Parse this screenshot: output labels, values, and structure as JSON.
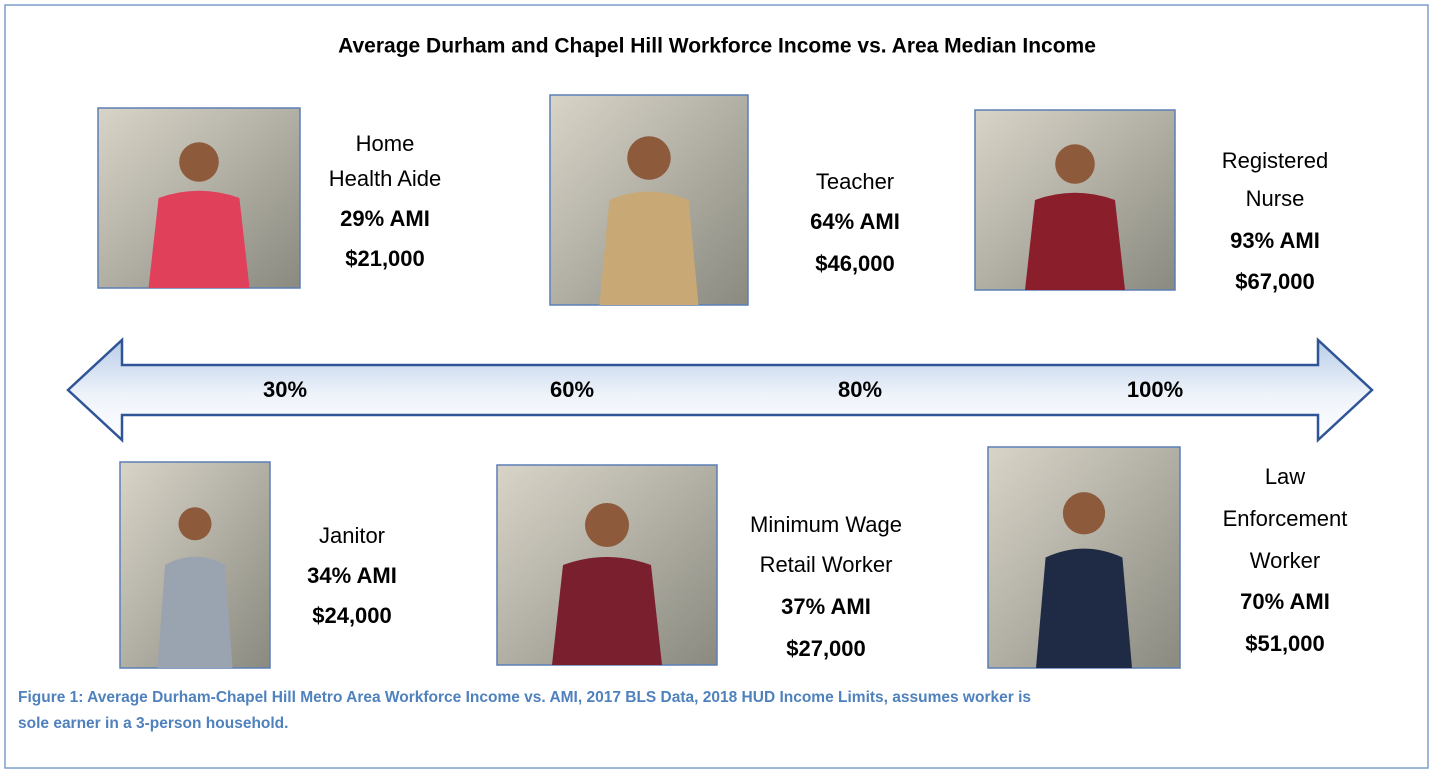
{
  "title": "Average Durham and Chapel Hill Workforce Income vs. Area Median Income",
  "workers": [
    {
      "name_lines": [
        "Home",
        "Health Aide"
      ],
      "ami": "29% AMI",
      "income": "$21,000"
    },
    {
      "name_lines": [
        "Teacher"
      ],
      "ami": "64% AMI",
      "income": "$46,000"
    },
    {
      "name_lines": [
        "Registered",
        "Nurse"
      ],
      "ami": "93% AMI",
      "income": "$67,000"
    },
    {
      "name_lines": [
        "Janitor"
      ],
      "ami": "34% AMI",
      "income": "$24,000"
    },
    {
      "name_lines": [
        "Minimum Wage",
        "Retail Worker"
      ],
      "ami": "37% AMI",
      "income": "$27,000"
    },
    {
      "name_lines": [
        "Law",
        "Enforcement",
        "Worker"
      ],
      "ami": "70% AMI",
      "income": "$51,000"
    }
  ],
  "arrow_labels": [
    "30%",
    "60%",
    "80%",
    "100%"
  ],
  "caption_lines": [
    "Figure 1: Average Durham-Chapel Hill Metro Area Workforce Income vs. AMI, 2017 BLS Data, 2018 HUD Income Limits, assumes worker is",
    "sole earner in a 3-person household."
  ]
}
